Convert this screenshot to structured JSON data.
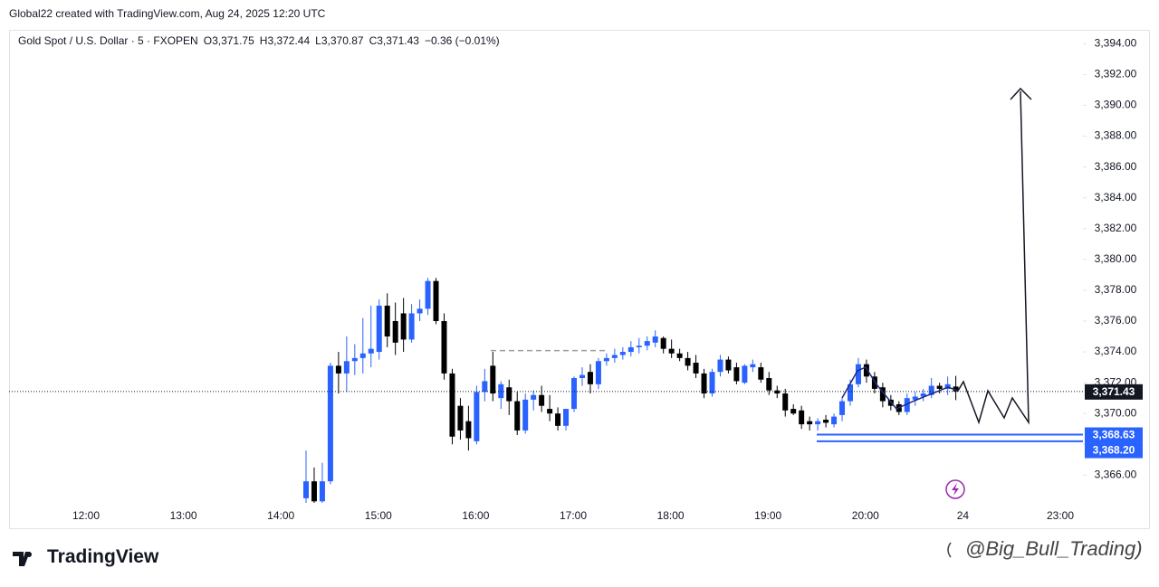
{
  "header": {
    "attribution": "Global22 created with TradingView.com, Aug 24, 2025 12:20 UTC",
    "symbol": "Gold Spot / U.S. Dollar · 5 · FXOPEN",
    "open": "O3,371.75",
    "high": "H3,372.44",
    "low": "L3,370.87",
    "close": "C3,371.43",
    "change": "−0.36 (−0.01%)"
  },
  "chart_data": {
    "type": "candlestick",
    "up_color": "#2962ff",
    "down_color": "#000000",
    "grid": false,
    "ylim": [
      3364.2,
      3394.9
    ],
    "yticks": [
      {
        "value": 3366,
        "label": "3,366.00"
      },
      {
        "value": 3368,
        "label": "3,368.00"
      },
      {
        "value": 3370,
        "label": "3,370.00"
      },
      {
        "value": 3372,
        "label": "3,372.00"
      },
      {
        "value": 3374,
        "label": "3,374.00"
      },
      {
        "value": 3376,
        "label": "3,376.00"
      },
      {
        "value": 3378,
        "label": "3,378.00"
      },
      {
        "value": 3380,
        "label": "3,380.00"
      },
      {
        "value": 3382,
        "label": "3,382.00"
      },
      {
        "value": 3384,
        "label": "3,384.00"
      },
      {
        "value": 3386,
        "label": "3,386.00"
      },
      {
        "value": 3388,
        "label": "3,388.00"
      },
      {
        "value": 3390,
        "label": "3,390.00"
      },
      {
        "value": 3392,
        "label": "3,392.00"
      },
      {
        "value": 3394,
        "label": "3,394.00"
      }
    ],
    "xtick_labels": [
      "12:00",
      "13:00",
      "14:00",
      "15:00",
      "16:00",
      "17:00",
      "18:00",
      "19:00",
      "20:00",
      "24",
      "23:00"
    ],
    "series": [
      {
        "open": [
          3364.5,
          3365.6,
          3364.3,
          3365.6,
          3373.1,
          3372.6,
          3373.4,
          3373.6,
          3373.9,
          3374.0,
          3377.0,
          3376.0,
          3376.5,
          3374.8,
          3376.5,
          3376.8,
          3378.6,
          3376.0,
          3372.6,
          3370.5,
          3369.5,
          3368.2,
          3371.4,
          3373.1,
          3371.0,
          3371.7,
          3370.8,
          3368.9,
          3370.9,
          3371.2,
          3370.3,
          3370.0,
          3369.2,
          3370.3,
          3372.3,
          3372.7,
          3371.9,
          3373.4,
          3373.6,
          3373.8,
          3374.0,
          3374.3,
          3374.4,
          3374.6,
          3374.9,
          3374.2,
          3373.9,
          3373.6,
          3373.3,
          3372.6,
          3371.3,
          3372.7,
          3373.5,
          3373.0,
          3372.0,
          3373.0,
          3373.0,
          3372.3,
          3371.5,
          3371.3,
          3370.3,
          3370.2,
          3369.5,
          3369.3,
          3369.6,
          3369.3,
          3369.9,
          3370.8,
          3371.9,
          3373.2,
          3372.4,
          3371.7,
          3370.9,
          3370.6,
          3370.1,
          3370.9,
          3371.1,
          3371.2,
          3371.8,
          3371.6,
          3371.75
        ],
        "high": [
          3367.6,
          3366.5,
          3366.8,
          3373.3,
          3374.0,
          3375.0,
          3374.5,
          3376.2,
          3377.0,
          3377.4,
          3377.8,
          3377.2,
          3377.5,
          3377.1,
          3377.4,
          3378.8,
          3378.8,
          3376.5,
          3372.9,
          3371.0,
          3370.5,
          3371.8,
          3372.9,
          3374.0,
          3372.1,
          3372.2,
          3371.4,
          3371.3,
          3371.5,
          3371.8,
          3371.2,
          3370.4,
          3370.3,
          3372.4,
          3373.0,
          3373.2,
          3373.6,
          3373.9,
          3374.2,
          3374.3,
          3374.7,
          3374.9,
          3375.0,
          3375.4,
          3375.0,
          3374.8,
          3374.2,
          3374.0,
          3373.8,
          3372.9,
          3372.9,
          3373.8,
          3373.7,
          3373.3,
          3373.2,
          3373.5,
          3373.3,
          3372.7,
          3371.8,
          3371.6,
          3370.6,
          3370.5,
          3369.8,
          3369.7,
          3369.9,
          3370.0,
          3371.0,
          3372.2,
          3373.6,
          3373.5,
          3372.7,
          3372.0,
          3371.2,
          3370.8,
          3371.3,
          3371.4,
          3371.6,
          3372.3,
          3372.0,
          3372.4,
          3372.44
        ],
        "low": [
          3363.5,
          3363.8,
          3363.9,
          3365.4,
          3371.3,
          3371.4,
          3372.5,
          3372.6,
          3373.0,
          3373.5,
          3374.3,
          3373.8,
          3374.0,
          3374.6,
          3376.0,
          3376.4,
          3375.8,
          3372.2,
          3368.0,
          3368.3,
          3367.6,
          3368.0,
          3370.8,
          3370.8,
          3370.3,
          3369.9,
          3368.6,
          3368.7,
          3370.2,
          3370.1,
          3369.5,
          3368.9,
          3368.9,
          3370.1,
          3371.8,
          3371.3,
          3371.6,
          3373.1,
          3373.3,
          3373.5,
          3373.7,
          3373.9,
          3374.1,
          3374.3,
          3373.9,
          3373.6,
          3373.4,
          3372.8,
          3372.3,
          3371.0,
          3371.1,
          3372.4,
          3372.6,
          3371.9,
          3371.9,
          3372.7,
          3372.0,
          3371.2,
          3371.0,
          3369.8,
          3369.9,
          3369.0,
          3368.9,
          3368.9,
          3369.1,
          3369.1,
          3369.5,
          3370.5,
          3371.7,
          3372.0,
          3371.3,
          3370.4,
          3370.2,
          3369.9,
          3369.9,
          3370.5,
          3370.8,
          3371.0,
          3371.3,
          3371.2,
          3370.87
        ],
        "close": [
          3365.6,
          3364.3,
          3365.6,
          3373.1,
          3372.6,
          3373.4,
          3373.6,
          3373.9,
          3374.2,
          3377.0,
          3375.0,
          3374.6,
          3374.8,
          3376.5,
          3376.8,
          3378.6,
          3376.0,
          3372.6,
          3368.5,
          3368.9,
          3368.4,
          3371.4,
          3372.1,
          3371.3,
          3371.9,
          3370.8,
          3368.9,
          3370.9,
          3371.2,
          3370.5,
          3370.0,
          3369.2,
          3370.3,
          3372.3,
          3372.5,
          3371.9,
          3373.4,
          3373.6,
          3373.8,
          3374.0,
          3374.3,
          3374.4,
          3374.7,
          3375.0,
          3374.2,
          3373.9,
          3373.6,
          3373.1,
          3372.6,
          3371.3,
          3372.7,
          3373.5,
          3372.8,
          3372.1,
          3373.1,
          3373.2,
          3372.2,
          3371.5,
          3371.3,
          3370.2,
          3370.0,
          3369.3,
          3369.3,
          3369.5,
          3369.4,
          3369.8,
          3370.8,
          3371.9,
          3373.2,
          3372.4,
          3371.6,
          3370.8,
          3370.5,
          3370.1,
          3371.0,
          3371.1,
          3371.3,
          3371.8,
          3371.6,
          3371.9,
          3371.43
        ]
      }
    ],
    "price_lines": [
      {
        "value": 3371.43,
        "label": "3,371.43",
        "color": "#131722",
        "style": "dotted"
      },
      {
        "value": 3368.63,
        "label": "3,368.63",
        "color": "#2962ff",
        "style": "solid"
      },
      {
        "value": 3368.2,
        "label": "3,368.20",
        "color": "#2962ff",
        "style": "solid"
      }
    ],
    "annotation_lines": [
      {
        "value": 3374.08,
        "color": "#9e9e9e",
        "style": "dashed"
      }
    ]
  },
  "footer": {
    "brand": "TradingView",
    "watermark": "@Big_Bull_Trading)"
  }
}
